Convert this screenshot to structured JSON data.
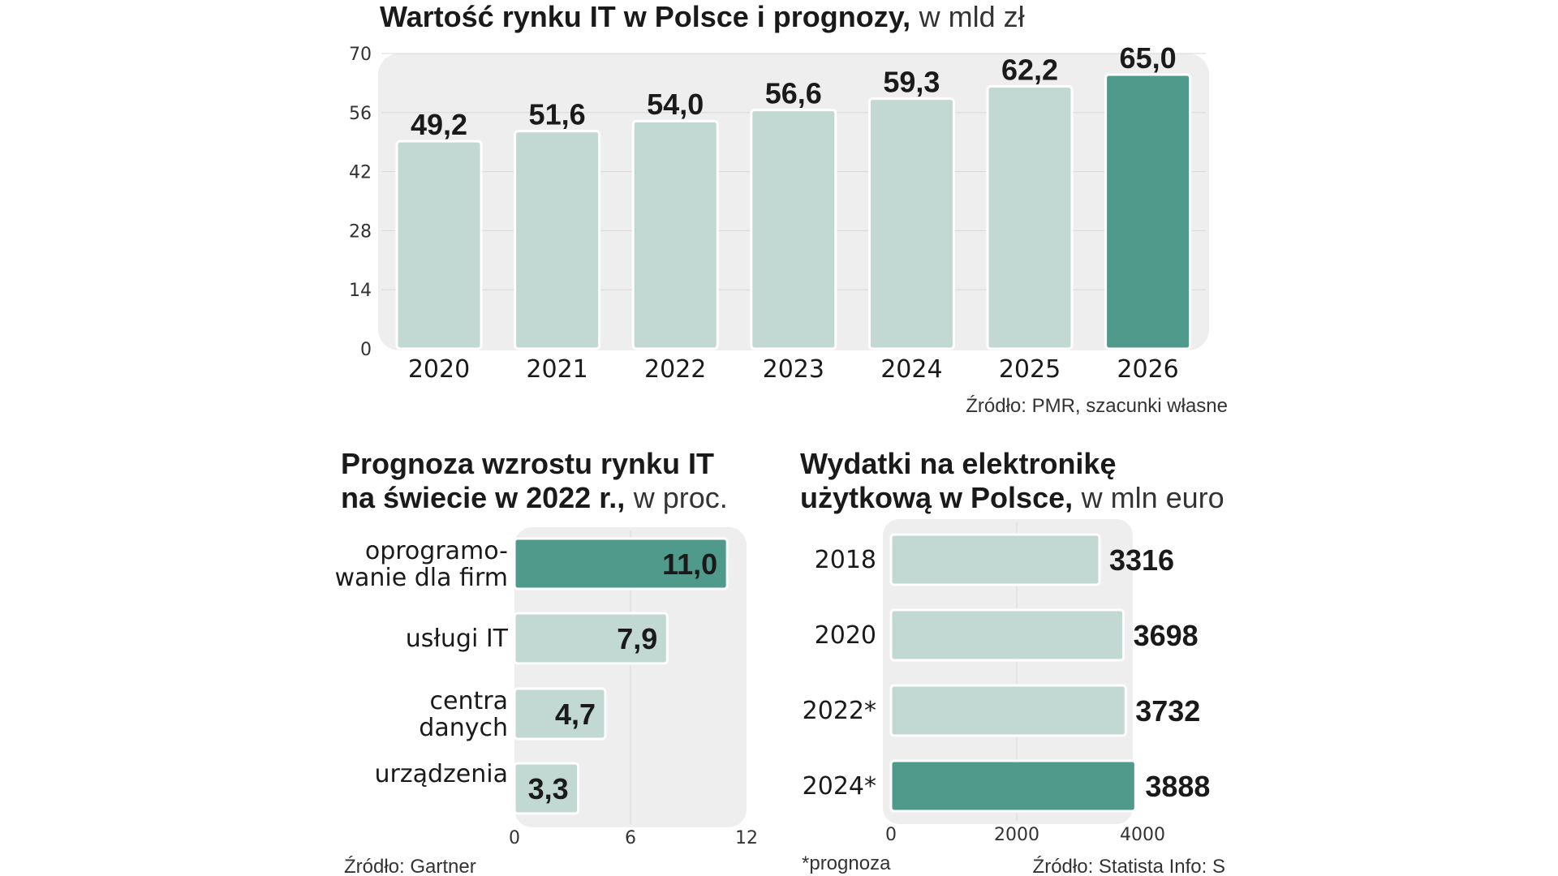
{
  "chart_data": [
    {
      "type": "bar",
      "title": "Wartość rynku IT w Polsce i prognozy,",
      "subtitle": "w mld zł",
      "categories": [
        "2020",
        "2021",
        "2022",
        "2023",
        "2024",
        "2025",
        "2026"
      ],
      "values": [
        49.2,
        51.6,
        54.0,
        56.6,
        59.3,
        62.2,
        65.0
      ],
      "value_labels": [
        "49,2",
        "51,6",
        "54,0",
        "56,6",
        "59,3",
        "62,2",
        "65,0"
      ],
      "highlight": [
        "2026"
      ],
      "y_ticks": [
        "0",
        "14",
        "28",
        "42",
        "56",
        "70"
      ],
      "ylim": [
        0,
        70
      ],
      "source": "Źródło: PMR, szacunki własne"
    },
    {
      "type": "bar",
      "orientation": "horizontal",
      "title_lines": [
        "Prognoza wzrostu rynku IT",
        "na świecie w 2022 r.,"
      ],
      "subtitle": "w proc.",
      "categories": [
        [
          "oprogramo-",
          "wanie dla firm"
        ],
        [
          "usługi IT"
        ],
        [
          "centra",
          "danych"
        ],
        [
          "urządzenia"
        ]
      ],
      "values": [
        11.0,
        7.9,
        4.7,
        3.3
      ],
      "value_labels": [
        "11,0",
        "7,9",
        "4,7",
        "3,3"
      ],
      "highlight_index": 0,
      "x_ticks": [
        "0",
        "6",
        "12"
      ],
      "xlim": [
        0,
        12
      ],
      "source": "Źródło: Gartner"
    },
    {
      "type": "bar",
      "orientation": "horizontal",
      "title_lines": [
        "Wydatki na elektronikę",
        "użytkową w Polsce,"
      ],
      "subtitle": "w mln euro",
      "categories": [
        "2018",
        "2020",
        "2022*",
        "2024*"
      ],
      "values": [
        3316,
        3698,
        3732,
        3888
      ],
      "value_labels": [
        "3316",
        "3698",
        "3732",
        "3888"
      ],
      "highlight_index": 3,
      "x_ticks": [
        "0",
        "2000",
        "4000"
      ],
      "xlim": [
        0,
        4000
      ],
      "footnote": "*prognoza",
      "source": "Źródło: Statista  Info: S"
    }
  ],
  "colors": {
    "bar": "#c1d9d2",
    "highlight": "#4f9a8b",
    "panel": "#eeeeee",
    "grid": "#d8d8d8"
  }
}
